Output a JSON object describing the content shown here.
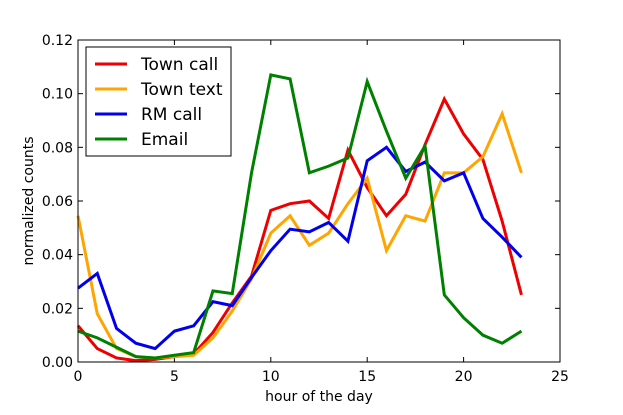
{
  "chart_data": {
    "type": "line",
    "xlabel": "hour of the day",
    "ylabel": "normalized counts",
    "xlim": [
      0,
      25
    ],
    "ylim": [
      0,
      0.12
    ],
    "x_ticks": [
      "0",
      "5",
      "10",
      "15",
      "20",
      "25"
    ],
    "y_ticks": [
      "0.00",
      "0.02",
      "0.04",
      "0.06",
      "0.08",
      "0.10",
      "0.12"
    ],
    "grid": false,
    "legend_position": "top-left",
    "x": [
      0,
      1,
      2,
      3,
      4,
      5,
      6,
      7,
      8,
      9,
      10,
      11,
      12,
      13,
      14,
      15,
      16,
      17,
      18,
      19,
      20,
      21,
      22,
      23
    ],
    "series": [
      {
        "name": "Town call",
        "color": "#ee0000",
        "values": [
          0.0135,
          0.005,
          0.0015,
          0.0005,
          0.001,
          0.002,
          0.003,
          0.011,
          0.022,
          0.032,
          0.0565,
          0.059,
          0.06,
          0.0535,
          0.079,
          0.065,
          0.0545,
          0.0625,
          0.081,
          0.098,
          0.085,
          0.0755,
          0.0525,
          0.025
        ]
      },
      {
        "name": "Town text",
        "color": "#ffa500",
        "values": [
          0.0545,
          0.018,
          0.005,
          0.002,
          0.0015,
          0.002,
          0.0025,
          0.009,
          0.019,
          0.031,
          0.048,
          0.0545,
          0.0435,
          0.048,
          0.059,
          0.0685,
          0.0415,
          0.0545,
          0.0525,
          0.0705,
          0.0705,
          0.0765,
          0.0925,
          0.0705
        ]
      },
      {
        "name": "RM call",
        "color": "#0000ee",
        "values": [
          0.0275,
          0.033,
          0.0125,
          0.007,
          0.005,
          0.0115,
          0.0135,
          0.0225,
          0.021,
          0.0315,
          0.0415,
          0.0495,
          0.0485,
          0.052,
          0.045,
          0.075,
          0.08,
          0.071,
          0.0745,
          0.0675,
          0.0705,
          0.0535,
          0.0465,
          0.039
        ]
      },
      {
        "name": "Email",
        "color": "#008000",
        "values": [
          0.0115,
          0.009,
          0.0055,
          0.002,
          0.0015,
          0.0025,
          0.0035,
          0.0265,
          0.0255,
          0.0705,
          0.107,
          0.1055,
          0.0705,
          0.073,
          0.076,
          0.1045,
          0.086,
          0.0685,
          0.0805,
          0.025,
          0.0165,
          0.01,
          0.007,
          0.0115
        ]
      }
    ]
  }
}
